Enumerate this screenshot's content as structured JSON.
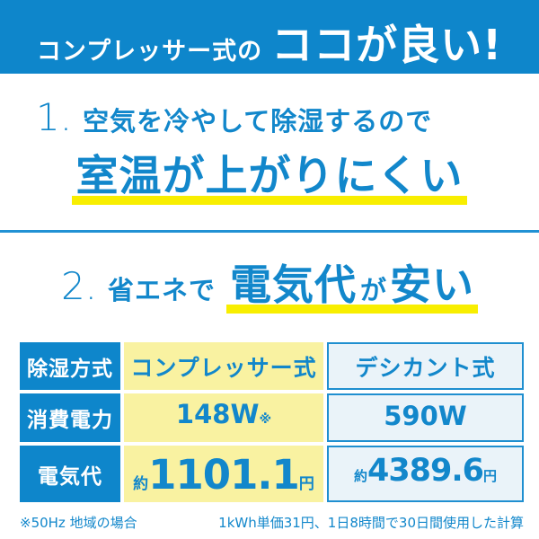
{
  "banner": {
    "prefix": "コンプレッサー式の",
    "highlight": "ココが良い!"
  },
  "sections": [
    {
      "number": "1.",
      "lead": "空気を冷やして除湿するので",
      "headline": "室温が上がりにくい"
    },
    {
      "number": "2.",
      "lead": "省エネで",
      "headline_big1": "電気代",
      "headline_small": "が",
      "headline_big2": "安い"
    }
  ],
  "table": {
    "header_row": {
      "label": "除湿方式",
      "compressor": "コンプレッサー式",
      "desiccant": "デシカント式"
    },
    "power_row": {
      "label": "消費電力",
      "compressor_value": "148W",
      "compressor_note": "※",
      "desiccant_value": "590W"
    },
    "cost_row": {
      "label": "電気代",
      "approx_prefix": "約",
      "compressor_value": "1101.1",
      "desiccant_value": "4389.6",
      "unit": "円"
    }
  },
  "footnotes": {
    "left": "※50Hz 地域の場合",
    "right": "1kWh単価31円、1日8時間で30日間使用した計算"
  },
  "colors": {
    "primary_blue": "#0e86cb",
    "text_blue": "#1287cb",
    "highlight_yellow": "#f8ee00",
    "cell_yellow": "#f9f2a1",
    "cell_lightblue": "#eaf3f9",
    "cell_border_blue": "#1f8fd0"
  }
}
